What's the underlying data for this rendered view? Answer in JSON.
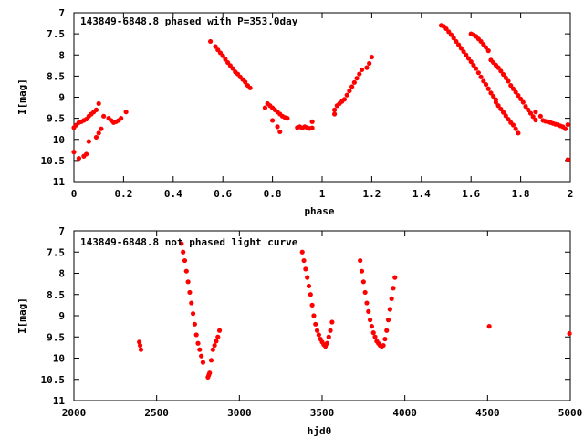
{
  "colors": {
    "points": "#ff0000",
    "axes": "#000000",
    "background": "#ffffff"
  },
  "chart_data": [
    {
      "type": "scatter",
      "title": "143849-6848.8 phased with P=353.0day",
      "xlabel": "phase",
      "ylabel": "I[mag]",
      "xlim": [
        0,
        2
      ],
      "ylim": [
        7,
        11
      ],
      "y_inverted": true,
      "xticks": [
        "0",
        "0.2",
        "0.4",
        "0.6",
        "0.8",
        "1",
        "1.2",
        "1.4",
        "1.6",
        "1.8",
        "2"
      ],
      "yticks": [
        "7",
        "7.5",
        "8",
        "8.5",
        "9",
        "9.5",
        "10",
        "10.5",
        "11"
      ],
      "grid": false,
      "points": [
        [
          0.0,
          10.3
        ],
        [
          0.0,
          9.72
        ],
        [
          0.01,
          9.66
        ],
        [
          0.02,
          9.6
        ],
        [
          0.03,
          9.58
        ],
        [
          0.04,
          9.55
        ],
        [
          0.05,
          9.52
        ],
        [
          0.06,
          9.45
        ],
        [
          0.07,
          9.4
        ],
        [
          0.08,
          9.35
        ],
        [
          0.09,
          9.3
        ],
        [
          0.1,
          9.15
        ],
        [
          0.02,
          10.45
        ],
        [
          0.04,
          10.4
        ],
        [
          0.05,
          10.35
        ],
        [
          0.06,
          10.05
        ],
        [
          0.09,
          9.95
        ],
        [
          0.1,
          9.85
        ],
        [
          0.11,
          9.75
        ],
        [
          0.12,
          9.45
        ],
        [
          0.14,
          9.5
        ],
        [
          0.15,
          9.55
        ],
        [
          0.16,
          9.6
        ],
        [
          0.17,
          9.58
        ],
        [
          0.18,
          9.55
        ],
        [
          0.19,
          9.5
        ],
        [
          0.21,
          9.35
        ],
        [
          0.55,
          7.68
        ],
        [
          0.57,
          7.8
        ],
        [
          0.58,
          7.88
        ],
        [
          0.59,
          7.95
        ],
        [
          0.6,
          8.02
        ],
        [
          0.61,
          8.1
        ],
        [
          0.62,
          8.18
        ],
        [
          0.63,
          8.25
        ],
        [
          0.64,
          8.32
        ],
        [
          0.65,
          8.4
        ],
        [
          0.66,
          8.45
        ],
        [
          0.67,
          8.52
        ],
        [
          0.68,
          8.58
        ],
        [
          0.69,
          8.64
        ],
        [
          0.7,
          8.72
        ],
        [
          0.71,
          8.78
        ],
        [
          0.77,
          9.25
        ],
        [
          0.78,
          9.15
        ],
        [
          0.79,
          9.2
        ],
        [
          0.8,
          9.25
        ],
        [
          0.81,
          9.3
        ],
        [
          0.82,
          9.35
        ],
        [
          0.83,
          9.4
        ],
        [
          0.84,
          9.45
        ],
        [
          0.85,
          9.48
        ],
        [
          0.86,
          9.5
        ],
        [
          0.8,
          9.55
        ],
        [
          0.82,
          9.7
        ],
        [
          0.83,
          9.82
        ],
        [
          0.9,
          9.72
        ],
        [
          0.91,
          9.7
        ],
        [
          0.92,
          9.73
        ],
        [
          0.93,
          9.7
        ],
        [
          0.94,
          9.72
        ],
        [
          0.95,
          9.74
        ],
        [
          0.96,
          9.73
        ],
        [
          0.96,
          9.58
        ],
        [
          1.05,
          9.4
        ],
        [
          1.05,
          9.3
        ],
        [
          1.06,
          9.2
        ],
        [
          1.07,
          9.15
        ],
        [
          1.08,
          9.1
        ],
        [
          1.09,
          9.05
        ],
        [
          1.1,
          8.95
        ],
        [
          1.11,
          8.85
        ],
        [
          1.12,
          8.75
        ],
        [
          1.13,
          8.65
        ],
        [
          1.14,
          8.55
        ],
        [
          1.15,
          8.45
        ],
        [
          1.16,
          8.35
        ],
        [
          1.18,
          8.3
        ],
        [
          1.19,
          8.2
        ],
        [
          1.2,
          8.05
        ],
        [
          1.48,
          7.3
        ],
        [
          1.49,
          7.32
        ],
        [
          1.5,
          7.38
        ],
        [
          1.51,
          7.45
        ],
        [
          1.52,
          7.52
        ],
        [
          1.53,
          7.6
        ],
        [
          1.54,
          7.68
        ],
        [
          1.55,
          7.76
        ],
        [
          1.56,
          7.84
        ],
        [
          1.57,
          7.92
        ],
        [
          1.58,
          8.0
        ],
        [
          1.59,
          8.08
        ],
        [
          1.6,
          8.16
        ],
        [
          1.61,
          8.24
        ],
        [
          1.62,
          8.32
        ],
        [
          1.63,
          8.42
        ],
        [
          1.64,
          8.52
        ],
        [
          1.65,
          8.62
        ],
        [
          1.66,
          8.7
        ],
        [
          1.67,
          8.8
        ],
        [
          1.68,
          8.9
        ],
        [
          1.69,
          8.98
        ],
        [
          1.7,
          9.06
        ],
        [
          1.6,
          7.5
        ],
        [
          1.61,
          7.52
        ],
        [
          1.62,
          7.56
        ],
        [
          1.63,
          7.62
        ],
        [
          1.64,
          7.68
        ],
        [
          1.65,
          7.75
        ],
        [
          1.66,
          7.82
        ],
        [
          1.67,
          7.9
        ],
        [
          1.68,
          8.12
        ],
        [
          1.69,
          8.18
        ],
        [
          1.7,
          8.24
        ],
        [
          1.71,
          8.3
        ],
        [
          1.72,
          8.38
        ],
        [
          1.73,
          8.46
        ],
        [
          1.74,
          8.54
        ],
        [
          1.75,
          8.62
        ],
        [
          1.76,
          8.72
        ],
        [
          1.77,
          8.8
        ],
        [
          1.78,
          8.88
        ],
        [
          1.79,
          8.96
        ],
        [
          1.8,
          9.04
        ],
        [
          1.81,
          9.12
        ],
        [
          1.82,
          9.22
        ],
        [
          1.7,
          9.12
        ],
        [
          1.71,
          9.2
        ],
        [
          1.72,
          9.28
        ],
        [
          1.73,
          9.36
        ],
        [
          1.74,
          9.44
        ],
        [
          1.75,
          9.52
        ],
        [
          1.76,
          9.6
        ],
        [
          1.77,
          9.66
        ],
        [
          1.78,
          9.75
        ],
        [
          1.79,
          9.85
        ],
        [
          1.83,
          9.3
        ],
        [
          1.84,
          9.38
        ],
        [
          1.85,
          9.46
        ],
        [
          1.86,
          9.54
        ],
        [
          1.86,
          9.35
        ],
        [
          1.88,
          9.45
        ],
        [
          1.89,
          9.55
        ],
        [
          1.9,
          9.57
        ],
        [
          1.91,
          9.58
        ],
        [
          1.92,
          9.6
        ],
        [
          1.93,
          9.62
        ],
        [
          1.94,
          9.64
        ],
        [
          1.95,
          9.65
        ],
        [
          1.96,
          9.68
        ],
        [
          1.97,
          9.7
        ],
        [
          1.98,
          9.75
        ],
        [
          1.99,
          9.65
        ],
        [
          1.99,
          10.48
        ]
      ]
    },
    {
      "type": "scatter",
      "title": "143849-6848.8 not phased light curve",
      "xlabel": "hjd0",
      "ylabel": "I[mag]",
      "xlim": [
        2000,
        5000
      ],
      "ylim": [
        7,
        11
      ],
      "y_inverted": true,
      "xticks": [
        "2000",
        "2500",
        "3000",
        "3500",
        "4000",
        "4500",
        "5000"
      ],
      "yticks": [
        "7",
        "7.5",
        "8",
        "8.5",
        "9",
        "9.5",
        "10",
        "10.5",
        "11"
      ],
      "grid": false,
      "points": [
        [
          2395,
          9.62
        ],
        [
          2400,
          9.7
        ],
        [
          2405,
          9.8
        ],
        [
          2650,
          7.3
        ],
        [
          2660,
          7.5
        ],
        [
          2670,
          7.7
        ],
        [
          2680,
          7.95
        ],
        [
          2690,
          8.2
        ],
        [
          2700,
          8.45
        ],
        [
          2710,
          8.7
        ],
        [
          2720,
          8.95
        ],
        [
          2730,
          9.2
        ],
        [
          2740,
          9.45
        ],
        [
          2750,
          9.65
        ],
        [
          2760,
          9.8
        ],
        [
          2770,
          9.95
        ],
        [
          2780,
          10.1
        ],
        [
          2810,
          10.45
        ],
        [
          2815,
          10.4
        ],
        [
          2820,
          10.35
        ],
        [
          2830,
          10.05
        ],
        [
          2840,
          9.8
        ],
        [
          2850,
          9.7
        ],
        [
          2860,
          9.6
        ],
        [
          2870,
          9.5
        ],
        [
          2880,
          9.35
        ],
        [
          3380,
          7.5
        ],
        [
          3390,
          7.7
        ],
        [
          3400,
          7.9
        ],
        [
          3410,
          8.1
        ],
        [
          3420,
          8.3
        ],
        [
          3430,
          8.5
        ],
        [
          3440,
          8.75
        ],
        [
          3450,
          9.0
        ],
        [
          3460,
          9.2
        ],
        [
          3470,
          9.35
        ],
        [
          3480,
          9.45
        ],
        [
          3490,
          9.55
        ],
        [
          3500,
          9.62
        ],
        [
          3510,
          9.68
        ],
        [
          3520,
          9.72
        ],
        [
          3530,
          9.65
        ],
        [
          3540,
          9.5
        ],
        [
          3550,
          9.35
        ],
        [
          3560,
          9.15
        ],
        [
          3730,
          7.7
        ],
        [
          3740,
          7.95
        ],
        [
          3750,
          8.2
        ],
        [
          3760,
          8.45
        ],
        [
          3770,
          8.7
        ],
        [
          3780,
          8.9
        ],
        [
          3790,
          9.1
        ],
        [
          3800,
          9.25
        ],
        [
          3810,
          9.4
        ],
        [
          3820,
          9.5
        ],
        [
          3830,
          9.6
        ],
        [
          3840,
          9.65
        ],
        [
          3850,
          9.7
        ],
        [
          3860,
          9.72
        ],
        [
          3870,
          9.7
        ],
        [
          3880,
          9.55
        ],
        [
          3890,
          9.35
        ],
        [
          3900,
          9.1
        ],
        [
          3910,
          8.85
        ],
        [
          3920,
          8.6
        ],
        [
          3930,
          8.35
        ],
        [
          3940,
          8.1
        ],
        [
          4510,
          9.25
        ],
        [
          4995,
          9.42
        ]
      ]
    }
  ]
}
